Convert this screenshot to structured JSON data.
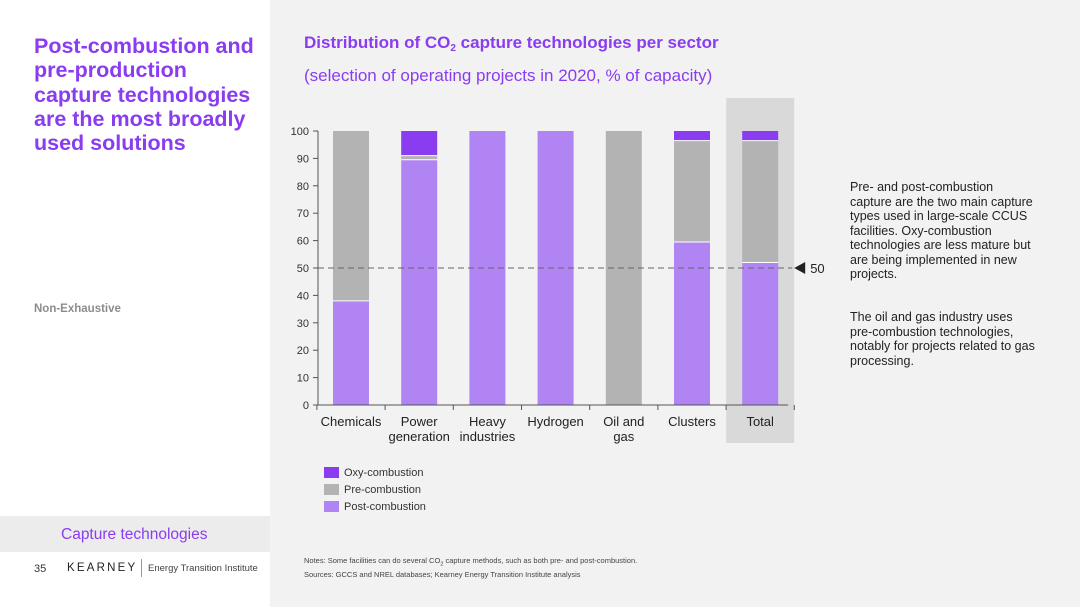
{
  "sidebar": {
    "title": "Post-combustion and pre-production capture technologies are the most broadly used solutions",
    "tag": "Non-Exhaustive",
    "section_label": "Capture technologies"
  },
  "footer": {
    "page_number": "35",
    "brand": "KEARNEY",
    "brand_sub": "Energy Transition Institute"
  },
  "chart_header": {
    "title_pre": "Distribution of CO",
    "title_sub": "2",
    "title_post": " capture technologies per sector",
    "subtitle": "(selection of operating projects in 2020, % of capacity)"
  },
  "chart_data": {
    "type": "bar",
    "stacked": true,
    "categories": [
      [
        "Chemicals"
      ],
      [
        "Power",
        "generation"
      ],
      [
        "Heavy",
        "industries"
      ],
      [
        "Hydrogen"
      ],
      [
        "Oil and",
        "gas"
      ],
      [
        "Clusters"
      ],
      [
        "Total"
      ]
    ],
    "highlight_category": "Total",
    "series": [
      {
        "name": "Post-combustion",
        "color": "#b084f2",
        "values": [
          38,
          89.5,
          100,
          100,
          0,
          59.5,
          52
        ]
      },
      {
        "name": "Pre-combustion",
        "color": "#b3b3b3",
        "values": [
          62,
          1.5,
          0,
          0,
          100,
          37,
          44.5
        ]
      },
      {
        "name": "Oxy-combustion",
        "color": "#8a3cf0",
        "values": [
          0,
          9,
          0,
          0,
          0,
          3.5,
          3.5
        ]
      }
    ],
    "ylim": [
      0,
      100
    ],
    "yticks": [
      0,
      10,
      20,
      30,
      40,
      50,
      60,
      70,
      80,
      90,
      100
    ],
    "reference_line": {
      "value": 50,
      "label": "50"
    },
    "grid": false,
    "legend_position": "bottom-left"
  },
  "legend_order": [
    {
      "label": "Oxy-combustion",
      "color": "#8a3cf0"
    },
    {
      "label": "Pre-combustion",
      "color": "#b3b3b3"
    },
    {
      "label": "Post-combustion",
      "color": "#b084f2"
    }
  ],
  "side_text": {
    "para1": "Pre- and post-combustion capture are the two main capture types used in large-scale CCUS facilities. Oxy-combustion technologies are less mature but are being implemented in new projects.",
    "para2": "The oil and gas industry uses pre-combustion technologies, notably for projects related to gas processing."
  },
  "notes": {
    "line1_pre": "Notes: Some facilities can do several CO",
    "line1_sub": "2",
    "line1_post": " capture methods, such as both pre- and post-combustion.",
    "line2": "Sources: GCCS and NREL databases; Kearney Energy Transition Institute analysis"
  }
}
